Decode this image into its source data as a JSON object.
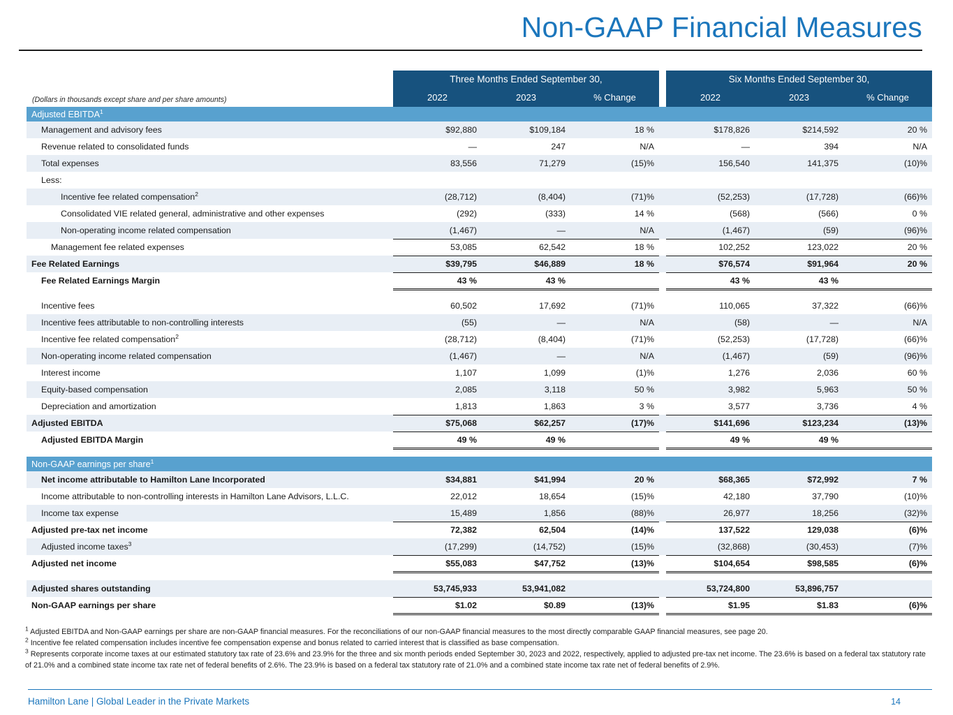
{
  "title": "Non-GAAP Financial Measures",
  "colors": {
    "title_blue": "#1b76bc",
    "header_navy": "#17527e",
    "section_band_blue": "#58a1cf",
    "row_shade": "#e8eef5",
    "footer_blue": "#1b76bc"
  },
  "table": {
    "caption": "(Dollars in thousands except share and per share amounts)",
    "col_groups": [
      "Three Months Ended September 30,",
      "Six Months Ended September 30,"
    ],
    "col_headers": [
      "2022",
      "2023",
      "% Change",
      "2022",
      "2023",
      "% Change"
    ],
    "sections": [
      {
        "id": "adjusted-ebitda",
        "header": "Adjusted EBITDA",
        "sup": "1",
        "rows": [
          {
            "label": "Management and advisory fees",
            "indent": 1,
            "shade": true,
            "values": [
              "$92,880",
              "$109,184",
              "18 %",
              "$178,826",
              "$214,592",
              "20 %"
            ]
          },
          {
            "label": "Revenue related to consolidated funds",
            "indent": 1,
            "values": [
              "—",
              "247",
              "N/A",
              "—",
              "394",
              "N/A"
            ]
          },
          {
            "label": "Total expenses",
            "indent": 1,
            "shade": true,
            "values": [
              "83,556",
              "71,279",
              "(15)%",
              "156,540",
              "141,375",
              "(10)%"
            ]
          },
          {
            "label": "Less:",
            "indent": 1,
            "values": [
              "",
              "",
              "",
              "",
              "",
              ""
            ]
          },
          {
            "label": "Incentive fee related compensation",
            "sup": "2",
            "indent": 3,
            "shade": true,
            "values": [
              "(28,712)",
              "(8,404)",
              "(71)%",
              "(52,253)",
              "(17,728)",
              "(66)%"
            ]
          },
          {
            "label": "Consolidated VIE related general, administrative and other expenses",
            "indent": 3,
            "values": [
              "(292)",
              "(333)",
              "14 %",
              "(568)",
              "(566)",
              "0 %"
            ]
          },
          {
            "label": "Non-operating income related compensation",
            "indent": 3,
            "shade": true,
            "values": [
              "(1,467)",
              "—",
              "N/A",
              "(1,467)",
              "(59)",
              "(96)%"
            ]
          },
          {
            "label": "Management fee related expenses",
            "indent": 2,
            "bt": true,
            "values": [
              "53,085",
              "62,542",
              "18 %",
              "102,252",
              "123,022",
              "20 %"
            ]
          },
          {
            "label": "Fee Related Earnings",
            "indent": 0,
            "bold": true,
            "shade": true,
            "bt": true,
            "bb": true,
            "values": [
              "$39,795",
              "$46,889",
              "18 %",
              "$76,574",
              "$91,964",
              "20 %"
            ]
          },
          {
            "label": "Fee Related Earnings Margin",
            "indent": 1,
            "bold": true,
            "dbl": true,
            "values": [
              "43 %",
              "43 %",
              "",
              "43 %",
              "43 %",
              ""
            ]
          },
          {
            "spacer": true
          },
          {
            "label": "Incentive fees",
            "indent": 1,
            "values": [
              "60,502",
              "17,692",
              "(71)%",
              "110,065",
              "37,322",
              "(66)%"
            ]
          },
          {
            "label": "Incentive fees attributable to non-controlling interests",
            "indent": 1,
            "shade": true,
            "values": [
              "(55)",
              "—",
              "N/A",
              "(58)",
              "—",
              "N/A"
            ]
          },
          {
            "label": "Incentive fee related compensation",
            "sup": "2",
            "indent": 1,
            "values": [
              "(28,712)",
              "(8,404)",
              "(71)%",
              "(52,253)",
              "(17,728)",
              "(66)%"
            ]
          },
          {
            "label": "Non-operating income related compensation",
            "indent": 1,
            "shade": true,
            "values": [
              "(1,467)",
              "—",
              "N/A",
              "(1,467)",
              "(59)",
              "(96)%"
            ]
          },
          {
            "label": "Interest income",
            "indent": 1,
            "values": [
              "1,107",
              "1,099",
              "(1)%",
              "1,276",
              "2,036",
              "60 %"
            ]
          },
          {
            "label": "Equity-based compensation",
            "indent": 1,
            "shade": true,
            "values": [
              "2,085",
              "3,118",
              "50 %",
              "3,982",
              "5,963",
              "50 %"
            ]
          },
          {
            "label": "Depreciation and amortization",
            "indent": 1,
            "values": [
              "1,813",
              "1,863",
              "3 %",
              "3,577",
              "3,736",
              "4 %"
            ]
          },
          {
            "label": "Adjusted EBITDA",
            "indent": 0,
            "bold": true,
            "shade": true,
            "bt": true,
            "bb": true,
            "values": [
              "$75,068",
              "$62,257",
              "(17)%",
              "$141,696",
              "$123,234",
              "(13)%"
            ]
          },
          {
            "label": "Adjusted EBITDA Margin",
            "indent": 1,
            "bold": true,
            "dbl": true,
            "values": [
              "49 %",
              "49 %",
              "",
              "49 %",
              "49 %",
              ""
            ]
          },
          {
            "spacer": true
          }
        ]
      },
      {
        "id": "non-gaap-eps",
        "header": "Non-GAAP earnings per share",
        "sup": "1",
        "rows": [
          {
            "label": "Net income attributable to Hamilton Lane Incorporated",
            "indent": 1,
            "bold": true,
            "shade": true,
            "values": [
              "$34,881",
              "$41,994",
              "20 %",
              "$68,365",
              "$72,992",
              "7 %"
            ]
          },
          {
            "label": "Income attributable to non-controlling interests in Hamilton Lane Advisors, L.L.C.",
            "indent": 1,
            "values": [
              "22,012",
              "18,654",
              "(15)%",
              "42,180",
              "37,790",
              "(10)%"
            ]
          },
          {
            "label": "Income tax expense",
            "indent": 1,
            "shade": true,
            "values": [
              "15,489",
              "1,856",
              "(88)%",
              "26,977",
              "18,256",
              "(32)%"
            ]
          },
          {
            "label": "Adjusted pre-tax net income",
            "indent": 0,
            "bold": true,
            "bt": true,
            "values": [
              "72,382",
              "62,504",
              "(14)%",
              "137,522",
              "129,038",
              "(6)%"
            ]
          },
          {
            "label": "Adjusted income taxes",
            "sup": "3",
            "indent": 1,
            "shade": true,
            "values": [
              "(17,299)",
              "(14,752)",
              "(15)%",
              "(32,868)",
              "(30,453)",
              "(7)%"
            ]
          },
          {
            "label": "Adjusted net income",
            "indent": 0,
            "bold": true,
            "bt": true,
            "dbl": true,
            "values": [
              "$55,083",
              "$47,752",
              "(13)%",
              "$104,654",
              "$98,585",
              "(6)%"
            ]
          },
          {
            "spacer": true
          },
          {
            "label": "Adjusted shares outstanding",
            "indent": 0,
            "bold": true,
            "shade": true,
            "values": [
              "53,745,933",
              "53,941,082",
              "",
              "53,724,800",
              "53,896,757",
              ""
            ]
          },
          {
            "label": "Non-GAAP earnings per share",
            "indent": 0,
            "bold": true,
            "bt": true,
            "dbl": true,
            "values": [
              "$1.02",
              "$0.89",
              "(13)%",
              "$1.95",
              "$1.83",
              "(6)%"
            ]
          }
        ]
      }
    ]
  },
  "footnotes": [
    {
      "sup": "1",
      "text": "Adjusted EBITDA and Non-GAAP earnings per share are non-GAAP financial measures. For the reconciliations of our non-GAAP financial measures to the most directly comparable GAAP financial measures, see page 20."
    },
    {
      "sup": "2",
      "text": "Incentive fee related compensation includes incentive fee compensation expense and bonus related to carried interest that is classified as base compensation."
    },
    {
      "sup": "3",
      "text": "Represents corporate income taxes at our estimated statutory tax rate of 23.6% and 23.9% for the three and six month periods ended September 30, 2023 and 2022, respectively, applied to adjusted pre-tax net income. The 23.6% is based on a federal tax statutory rate of 21.0% and a combined state income tax rate net of federal benefits of 2.6%. The 23.9% is based on a federal tax statutory rate of 21.0% and a combined state income tax rate net of federal benefits of 2.9%."
    }
  ],
  "footer": {
    "tagline": "Hamilton Lane | Global Leader in the Private Markets",
    "page_number": "14"
  }
}
